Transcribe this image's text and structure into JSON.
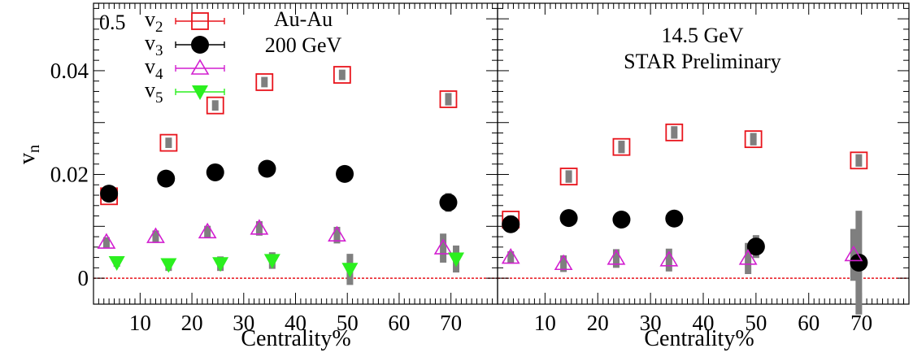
{
  "chart_data": [
    {
      "type": "scatter",
      "panel": "left",
      "annotations": [
        "Au-Au",
        "200 GeV"
      ],
      "corner_label": "0.5",
      "xlabel": "Centrality%",
      "ylabel": "v",
      "ylabel_sub": "n",
      "xlim": [
        1,
        79
      ],
      "ylim": [
        -0.005,
        0.053
      ],
      "x_ticks": [
        10,
        20,
        30,
        40,
        50,
        60,
        70
      ],
      "y_ticks": [
        0,
        0.02,
        0.04
      ],
      "y_tick_labels": [
        "0",
        "0.02",
        "0.04"
      ],
      "zero_line": true,
      "legend": {
        "placement": "top-left",
        "entries": [
          {
            "base": "v",
            "sub": "2",
            "series": "v2"
          },
          {
            "base": "v",
            "sub": "3",
            "series": "v3"
          },
          {
            "base": "v",
            "sub": "4",
            "series": "v4"
          },
          {
            "base": "v",
            "sub": "5",
            "series": "v5"
          }
        ]
      },
      "series": [
        {
          "name": "v2",
          "marker": "open-square",
          "color": "#e8141c",
          "points": [
            {
              "x": 4.0,
              "y": 0.0158,
              "sys": 0.0008
            },
            {
              "x": 15.5,
              "y": 0.0261,
              "sys": 0.001
            },
            {
              "x": 24.5,
              "y": 0.0333,
              "sys": 0.001
            },
            {
              "x": 34.0,
              "y": 0.0378,
              "sys": 0.001
            },
            {
              "x": 49.0,
              "y": 0.0392,
              "sys": 0.001
            },
            {
              "x": 69.5,
              "y": 0.0345,
              "sys": 0.0012
            }
          ]
        },
        {
          "name": "v3",
          "marker": "filled-circle",
          "color": "#000000",
          "points": [
            {
              "x": 4.0,
              "y": 0.0163,
              "sys": 0.0006
            },
            {
              "x": 15.0,
              "y": 0.0192,
              "sys": 0.0005
            },
            {
              "x": 24.5,
              "y": 0.0204,
              "sys": 0.0005
            },
            {
              "x": 34.5,
              "y": 0.0211,
              "sys": 0.0005
            },
            {
              "x": 49.5,
              "y": 0.0201,
              "sys": 0.0005
            },
            {
              "x": 69.5,
              "y": 0.0146,
              "sys": 0.0018
            }
          ]
        },
        {
          "name": "v4",
          "marker": "open-triangle-up",
          "color": "#d21fd0",
          "points": [
            {
              "x": 3.5,
              "y": 0.0069,
              "sys": 0.001
            },
            {
              "x": 13.0,
              "y": 0.008,
              "sys": 0.0012
            },
            {
              "x": 23.0,
              "y": 0.0089,
              "sys": 0.0012
            },
            {
              "x": 33.0,
              "y": 0.0096,
              "sys": 0.0014
            },
            {
              "x": 48.0,
              "y": 0.0083,
              "sys": 0.0016
            },
            {
              "x": 68.5,
              "y": 0.0058,
              "sys": 0.0028
            }
          ]
        },
        {
          "name": "v5",
          "marker": "filled-triangle-down",
          "color": "#2bef1f",
          "points": [
            {
              "x": 5.5,
              "y": 0.003,
              "sys": 0.0008
            },
            {
              "x": 15.5,
              "y": 0.0026,
              "sys": 0.0012
            },
            {
              "x": 25.5,
              "y": 0.0028,
              "sys": 0.0014
            },
            {
              "x": 35.5,
              "y": 0.0034,
              "sys": 0.0016
            },
            {
              "x": 50.5,
              "y": 0.0017,
              "sys": 0.003
            },
            {
              "x": 71.0,
              "y": 0.0037,
              "sys": 0.0026
            }
          ]
        }
      ]
    },
    {
      "type": "scatter",
      "panel": "right",
      "annotations": [
        "14.5 GeV",
        "STAR Preliminary"
      ],
      "xlabel": "Centrality%",
      "xlim": [
        1,
        79
      ],
      "ylim": [
        -0.005,
        0.053
      ],
      "x_ticks": [
        10,
        20,
        30,
        40,
        50,
        60,
        70
      ],
      "zero_line": true,
      "series": [
        {
          "name": "v2",
          "marker": "open-square",
          "color": "#e8141c",
          "points": [
            {
              "x": 3.5,
              "y": 0.0113,
              "sys": 0.0008
            },
            {
              "x": 14.5,
              "y": 0.0196,
              "sys": 0.0012
            },
            {
              "x": 24.5,
              "y": 0.0253,
              "sys": 0.0012
            },
            {
              "x": 34.5,
              "y": 0.0281,
              "sys": 0.0012
            },
            {
              "x": 49.5,
              "y": 0.0268,
              "sys": 0.0012
            },
            {
              "x": 69.5,
              "y": 0.0227,
              "sys": 0.0012
            }
          ]
        },
        {
          "name": "v3",
          "marker": "filled-circle",
          "color": "#000000",
          "points": [
            {
              "x": 3.5,
              "y": 0.0104,
              "sys": 0.0006
            },
            {
              "x": 14.5,
              "y": 0.0116,
              "sys": 0.0006
            },
            {
              "x": 24.5,
              "y": 0.0113,
              "sys": 0.0006
            },
            {
              "x": 34.5,
              "y": 0.0115,
              "sys": 0.0006
            },
            {
              "x": 50.0,
              "y": 0.0061,
              "sys": 0.0022
            },
            {
              "x": 69.5,
              "y": 0.003,
              "sys": 0.01
            }
          ]
        },
        {
          "name": "v4",
          "marker": "open-triangle-up",
          "color": "#d21fd0",
          "points": [
            {
              "x": 3.5,
              "y": 0.004,
              "sys": 0.0012
            },
            {
              "x": 13.5,
              "y": 0.0028,
              "sys": 0.0016
            },
            {
              "x": 23.5,
              "y": 0.0038,
              "sys": 0.0018
            },
            {
              "x": 33.5,
              "y": 0.0035,
              "sys": 0.0022
            },
            {
              "x": 48.5,
              "y": 0.0038,
              "sys": 0.003
            },
            {
              "x": 68.5,
              "y": 0.0045,
              "sys": 0.005
            }
          ]
        }
      ]
    }
  ]
}
